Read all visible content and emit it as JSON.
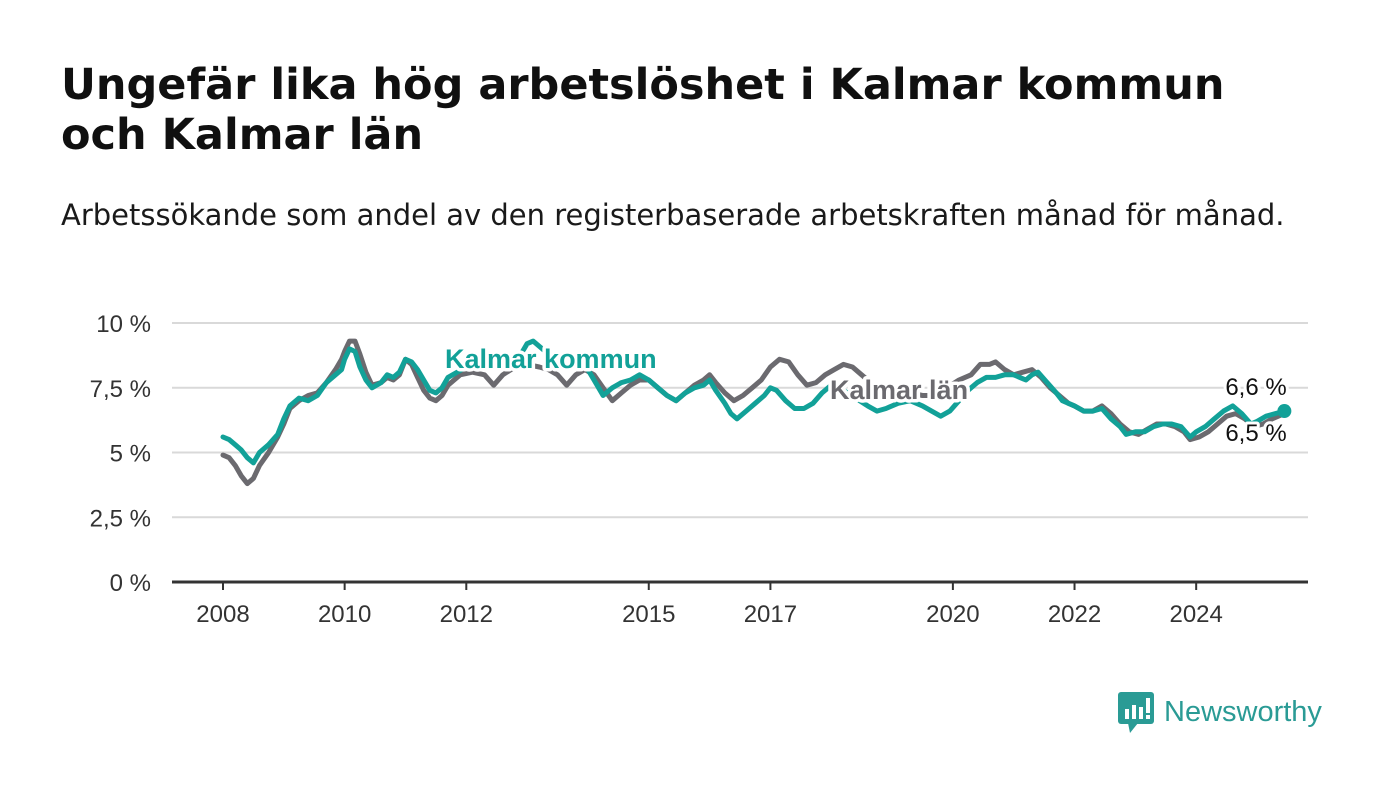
{
  "header": {
    "title": "Ungefär lika hög arbetslöshet i Kalmar kommun och Kalmar län",
    "subtitle": "Arbetssökande som andel av den registerbaserade arbetskraften månad för månad."
  },
  "brand": {
    "name": "Newsworthy",
    "color": "#2a9b95"
  },
  "colors": {
    "kommun": "#12a198",
    "lan": "#6b6a6f",
    "grid": "#d9d9d9",
    "axis": "#333333"
  },
  "chart_data": {
    "type": "line",
    "title": "Ungefär lika hög arbetslöshet i Kalmar kommun och Kalmar län",
    "subtitle": "Arbetssökande som andel av den registerbaserade arbetskraften månad för månad.",
    "xlabel": "",
    "ylabel": "",
    "ylim": [
      0,
      10
    ],
    "yticks": [
      0,
      2.5,
      5,
      7.5,
      10
    ],
    "ytick_labels": [
      "0 %",
      "2,5 %",
      "5 %",
      "7,5 %",
      "10 %"
    ],
    "xlim": [
      2007.6,
      2025.8
    ],
    "xticks": [
      2008,
      2010,
      2012,
      2015,
      2017,
      2020,
      2022,
      2024
    ],
    "xtick_labels": [
      "2008",
      "2010",
      "2012",
      "2015",
      "2017",
      "2020",
      "2022",
      "2024"
    ],
    "grid": true,
    "legend": "inline labels",
    "series": [
      {
        "name": "Kalmar kommun",
        "color": "#12a198",
        "end_label": "6,6 %",
        "points": [
          [
            2008.0,
            5.6
          ],
          [
            2008.1,
            5.5
          ],
          [
            2008.2,
            5.3
          ],
          [
            2008.3,
            5.1
          ],
          [
            2008.4,
            4.8
          ],
          [
            2008.5,
            4.6
          ],
          [
            2008.6,
            5.0
          ],
          [
            2008.75,
            5.3
          ],
          [
            2008.9,
            5.7
          ],
          [
            2009.0,
            6.3
          ],
          [
            2009.1,
            6.8
          ],
          [
            2009.25,
            7.1
          ],
          [
            2009.4,
            7.0
          ],
          [
            2009.55,
            7.2
          ],
          [
            2009.7,
            7.7
          ],
          [
            2009.85,
            8.0
          ],
          [
            2009.95,
            8.2
          ],
          [
            2010.0,
            8.6
          ],
          [
            2010.08,
            9.0
          ],
          [
            2010.17,
            8.9
          ],
          [
            2010.25,
            8.3
          ],
          [
            2010.35,
            7.8
          ],
          [
            2010.45,
            7.5
          ],
          [
            2010.6,
            7.7
          ],
          [
            2010.7,
            8.0
          ],
          [
            2010.8,
            7.9
          ],
          [
            2010.9,
            8.1
          ],
          [
            2011.0,
            8.6
          ],
          [
            2011.1,
            8.5
          ],
          [
            2011.2,
            8.2
          ],
          [
            2011.3,
            7.8
          ],
          [
            2011.4,
            7.4
          ],
          [
            2011.5,
            7.3
          ],
          [
            2011.6,
            7.5
          ],
          [
            2011.7,
            7.9
          ],
          [
            2012.0,
            8.3
          ],
          [
            2012.3,
            8.4
          ],
          [
            2012.6,
            8.6
          ],
          [
            2012.9,
            8.8
          ],
          [
            2013.0,
            9.2
          ],
          [
            2013.1,
            9.3
          ],
          [
            2013.25,
            9.0
          ],
          [
            2013.4,
            8.7
          ],
          [
            2013.6,
            8.6
          ],
          [
            2013.8,
            8.5
          ],
          [
            2013.95,
            8.4
          ],
          [
            2014.05,
            8.0
          ],
          [
            2014.15,
            7.6
          ],
          [
            2014.25,
            7.2
          ],
          [
            2014.4,
            7.5
          ],
          [
            2014.55,
            7.7
          ],
          [
            2014.7,
            7.8
          ],
          [
            2014.85,
            8.0
          ],
          [
            2015.0,
            7.8
          ],
          [
            2015.15,
            7.5
          ],
          [
            2015.3,
            7.2
          ],
          [
            2015.45,
            7.0
          ],
          [
            2015.6,
            7.3
          ],
          [
            2015.75,
            7.5
          ],
          [
            2015.9,
            7.6
          ],
          [
            2016.0,
            7.8
          ],
          [
            2016.1,
            7.4
          ],
          [
            2016.25,
            6.9
          ],
          [
            2016.35,
            6.5
          ],
          [
            2016.45,
            6.3
          ],
          [
            2016.6,
            6.6
          ],
          [
            2016.75,
            6.9
          ],
          [
            2016.9,
            7.2
          ],
          [
            2017.0,
            7.5
          ],
          [
            2017.1,
            7.4
          ],
          [
            2017.25,
            7.0
          ],
          [
            2017.4,
            6.7
          ],
          [
            2017.55,
            6.7
          ],
          [
            2017.7,
            6.9
          ],
          [
            2017.85,
            7.3
          ],
          [
            2018.0,
            7.6
          ],
          [
            2018.2,
            7.4
          ],
          [
            2018.4,
            7.1
          ],
          [
            2018.6,
            6.8
          ],
          [
            2018.75,
            6.6
          ],
          [
            2018.9,
            6.7
          ],
          [
            2019.1,
            6.9
          ],
          [
            2019.3,
            7.0
          ],
          [
            2019.5,
            6.8
          ],
          [
            2019.65,
            6.6
          ],
          [
            2019.8,
            6.4
          ],
          [
            2019.95,
            6.6
          ],
          [
            2020.1,
            7.0
          ],
          [
            2020.25,
            7.4
          ],
          [
            2020.4,
            7.7
          ],
          [
            2020.55,
            7.9
          ],
          [
            2020.7,
            7.9
          ],
          [
            2020.85,
            8.0
          ],
          [
            2021.0,
            8.0
          ],
          [
            2021.1,
            7.9
          ],
          [
            2021.2,
            7.8
          ],
          [
            2021.3,
            8.0
          ],
          [
            2021.4,
            8.1
          ],
          [
            2021.55,
            7.7
          ],
          [
            2021.7,
            7.3
          ],
          [
            2021.8,
            7.0
          ],
          [
            2021.9,
            6.9
          ],
          [
            2022.0,
            6.8
          ],
          [
            2022.15,
            6.6
          ],
          [
            2022.3,
            6.6
          ],
          [
            2022.45,
            6.7
          ],
          [
            2022.6,
            6.3
          ],
          [
            2022.75,
            6.0
          ],
          [
            2022.85,
            5.7
          ],
          [
            2023.0,
            5.8
          ],
          [
            2023.15,
            5.8
          ],
          [
            2023.3,
            6.0
          ],
          [
            2023.45,
            6.1
          ],
          [
            2023.6,
            6.1
          ],
          [
            2023.75,
            6.0
          ],
          [
            2023.9,
            5.6
          ],
          [
            2024.0,
            5.8
          ],
          [
            2024.15,
            6.0
          ],
          [
            2024.3,
            6.3
          ],
          [
            2024.45,
            6.6
          ],
          [
            2024.6,
            6.8
          ],
          [
            2024.75,
            6.5
          ],
          [
            2024.9,
            6.1
          ],
          [
            2025.0,
            6.2
          ],
          [
            2025.15,
            6.4
          ],
          [
            2025.3,
            6.5
          ],
          [
            2025.45,
            6.6
          ]
        ]
      },
      {
        "name": "Kalmar län",
        "color": "#6b6a6f",
        "end_label": "6,5 %",
        "points": [
          [
            2008.0,
            4.9
          ],
          [
            2008.1,
            4.8
          ],
          [
            2008.2,
            4.5
          ],
          [
            2008.3,
            4.1
          ],
          [
            2008.4,
            3.8
          ],
          [
            2008.5,
            4.0
          ],
          [
            2008.6,
            4.5
          ],
          [
            2008.75,
            5.0
          ],
          [
            2008.9,
            5.6
          ],
          [
            2009.0,
            6.1
          ],
          [
            2009.1,
            6.7
          ],
          [
            2009.25,
            7.0
          ],
          [
            2009.4,
            7.2
          ],
          [
            2009.55,
            7.3
          ],
          [
            2009.7,
            7.7
          ],
          [
            2009.85,
            8.2
          ],
          [
            2009.95,
            8.6
          ],
          [
            2010.0,
            8.9
          ],
          [
            2010.08,
            9.3
          ],
          [
            2010.17,
            9.3
          ],
          [
            2010.25,
            8.8
          ],
          [
            2010.35,
            8.1
          ],
          [
            2010.45,
            7.6
          ],
          [
            2010.6,
            7.7
          ],
          [
            2010.7,
            7.9
          ],
          [
            2010.8,
            7.8
          ],
          [
            2010.9,
            8.0
          ],
          [
            2011.0,
            8.6
          ],
          [
            2011.1,
            8.4
          ],
          [
            2011.2,
            7.9
          ],
          [
            2011.3,
            7.4
          ],
          [
            2011.4,
            7.1
          ],
          [
            2011.5,
            7.0
          ],
          [
            2011.6,
            7.2
          ],
          [
            2011.7,
            7.6
          ],
          [
            2011.9,
            8.0
          ],
          [
            2012.1,
            8.1
          ],
          [
            2012.3,
            8.0
          ],
          [
            2012.45,
            7.6
          ],
          [
            2012.6,
            8.0
          ],
          [
            2012.8,
            8.3
          ],
          [
            2013.0,
            8.4
          ],
          [
            2013.2,
            8.3
          ],
          [
            2013.35,
            8.2
          ],
          [
            2013.5,
            8.0
          ],
          [
            2013.65,
            7.6
          ],
          [
            2013.8,
            8.0
          ],
          [
            2013.95,
            8.2
          ],
          [
            2014.1,
            8.0
          ],
          [
            2014.25,
            7.5
          ],
          [
            2014.4,
            7.0
          ],
          [
            2014.55,
            7.3
          ],
          [
            2014.7,
            7.6
          ],
          [
            2014.85,
            7.8
          ],
          [
            2015.0,
            7.8
          ],
          [
            2015.15,
            7.5
          ],
          [
            2015.3,
            7.2
          ],
          [
            2015.45,
            7.0
          ],
          [
            2015.6,
            7.3
          ],
          [
            2015.75,
            7.6
          ],
          [
            2015.9,
            7.8
          ],
          [
            2016.0,
            8.0
          ],
          [
            2016.1,
            7.7
          ],
          [
            2016.25,
            7.3
          ],
          [
            2016.4,
            7.0
          ],
          [
            2016.55,
            7.2
          ],
          [
            2016.7,
            7.5
          ],
          [
            2016.85,
            7.8
          ],
          [
            2017.0,
            8.3
          ],
          [
            2017.15,
            8.6
          ],
          [
            2017.3,
            8.5
          ],
          [
            2017.45,
            8.0
          ],
          [
            2017.6,
            7.6
          ],
          [
            2017.75,
            7.7
          ],
          [
            2017.9,
            8.0
          ],
          [
            2018.05,
            8.2
          ],
          [
            2018.2,
            8.4
          ],
          [
            2018.35,
            8.3
          ],
          [
            2018.5,
            8.0
          ],
          [
            2018.7,
            7.6
          ],
          [
            2018.9,
            7.4
          ],
          [
            2019.1,
            7.3
          ],
          [
            2019.3,
            7.3
          ],
          [
            2019.5,
            7.2
          ],
          [
            2019.7,
            7.2
          ],
          [
            2019.9,
            7.5
          ],
          [
            2020.1,
            7.8
          ],
          [
            2020.3,
            8.0
          ],
          [
            2020.45,
            8.4
          ],
          [
            2020.6,
            8.4
          ],
          [
            2020.7,
            8.5
          ],
          [
            2020.85,
            8.2
          ],
          [
            2021.0,
            8.0
          ],
          [
            2021.15,
            8.1
          ],
          [
            2021.3,
            8.2
          ],
          [
            2021.45,
            7.9
          ],
          [
            2021.6,
            7.5
          ],
          [
            2021.75,
            7.2
          ],
          [
            2021.9,
            6.9
          ],
          [
            2022.0,
            6.8
          ],
          [
            2022.15,
            6.6
          ],
          [
            2022.3,
            6.6
          ],
          [
            2022.45,
            6.8
          ],
          [
            2022.6,
            6.5
          ],
          [
            2022.75,
            6.1
          ],
          [
            2022.9,
            5.8
          ],
          [
            2023.05,
            5.7
          ],
          [
            2023.2,
            5.9
          ],
          [
            2023.35,
            6.1
          ],
          [
            2023.5,
            6.1
          ],
          [
            2023.65,
            6.0
          ],
          [
            2023.8,
            5.8
          ],
          [
            2023.9,
            5.5
          ],
          [
            2024.05,
            5.6
          ],
          [
            2024.2,
            5.8
          ],
          [
            2024.35,
            6.1
          ],
          [
            2024.5,
            6.4
          ],
          [
            2024.65,
            6.5
          ],
          [
            2024.8,
            6.3
          ],
          [
            2024.95,
            6.0
          ],
          [
            2025.1,
            6.1
          ],
          [
            2025.25,
            6.3
          ],
          [
            2025.45,
            6.5
          ]
        ]
      }
    ]
  }
}
